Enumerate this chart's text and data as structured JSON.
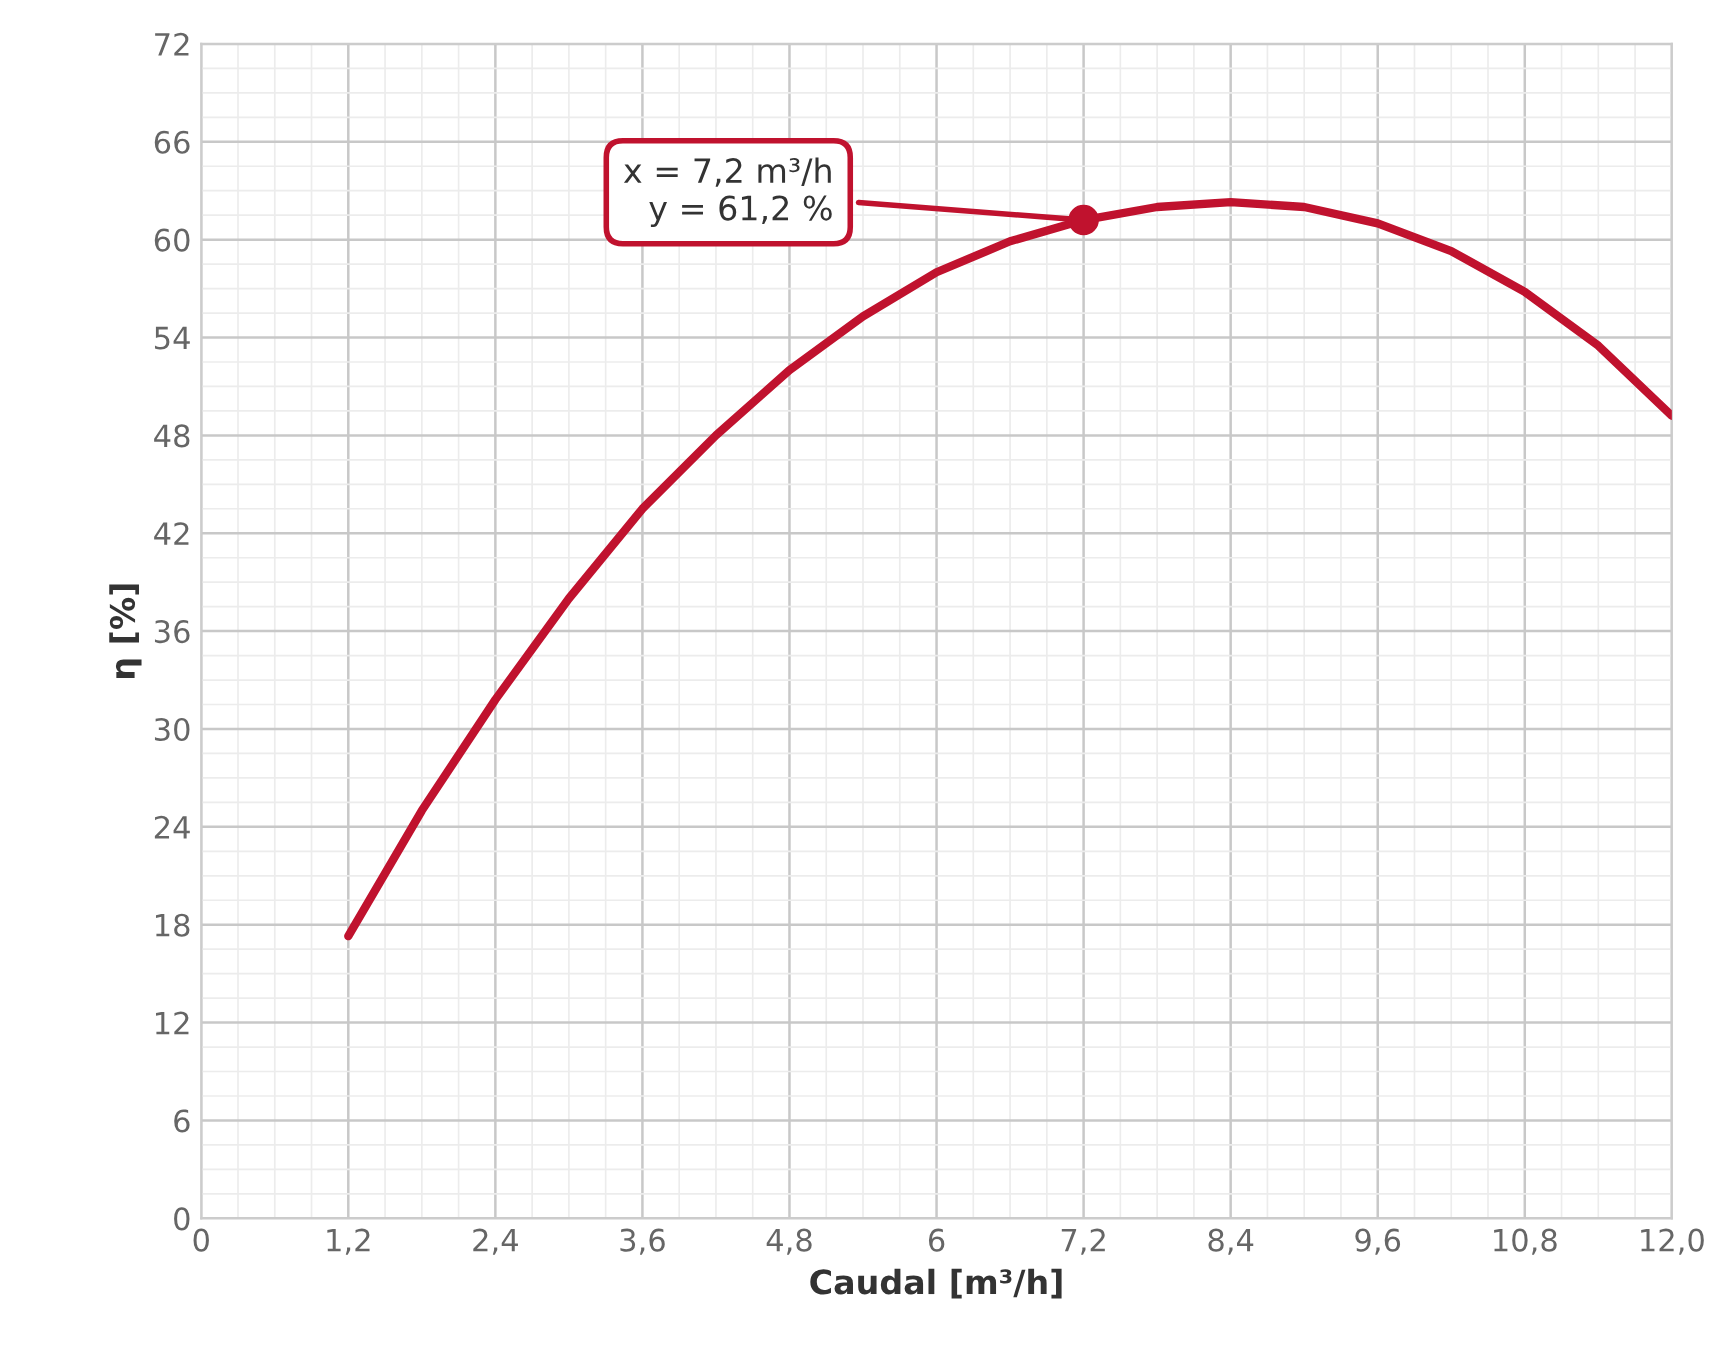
{
  "chart_data": {
    "type": "line",
    "xlabel": "Caudal [m³/h]",
    "ylabel": "η [%]",
    "series": [
      {
        "color": "#c0122e",
        "x": [
          1.2,
          1.8,
          2.4,
          3.0,
          3.6,
          4.2,
          4.8,
          5.4,
          6.0,
          6.6,
          7.2,
          7.8,
          8.4,
          9.0,
          9.6,
          10.2,
          10.8,
          11.4,
          12.0
        ],
        "values": [
          17.3,
          25,
          31.8,
          38,
          43.5,
          48,
          52,
          55.3,
          58,
          59.9,
          61.2,
          62,
          62.3,
          62,
          61,
          59.3,
          56.8,
          53.5,
          49.2
        ]
      }
    ],
    "xlim": [
      0,
      12
    ],
    "xticks": [
      0,
      {
        "value": 1.2,
        "label": "1,2"
      },
      {
        "value": 2.4,
        "label": "2,4"
      },
      {
        "value": 3.6,
        "label": "3,6"
      },
      {
        "value": 4.8,
        "label": "4,8"
      },
      6,
      {
        "value": 7.2,
        "label": "7,2"
      },
      {
        "value": 8.4,
        "label": "8,4"
      },
      {
        "value": 9.6,
        "label": "9,6"
      },
      {
        "value": 10.8,
        "label": "10,8"
      },
      {
        "value": 12,
        "label": "12,0"
      }
    ],
    "ylim": [
      0,
      72
    ],
    "yticks": [
      0,
      6,
      12,
      18,
      24,
      30,
      36,
      42,
      48,
      54,
      60,
      66,
      72
    ],
    "grid": true,
    "marker": "none",
    "line_style": "solid",
    "annotations": [
      {
        "text": "x = 7,2 m³/h\ny = 61,2 %",
        "x": 7.2,
        "y": 61.2
      }
    ]
  }
}
